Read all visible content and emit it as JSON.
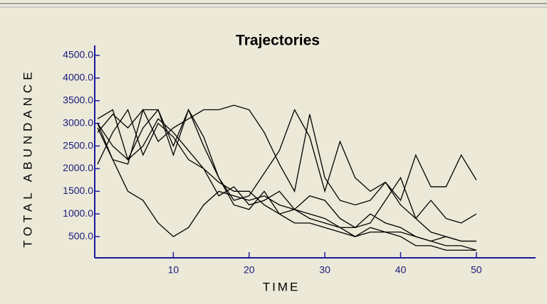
{
  "chart_data": {
    "type": "line",
    "title": "Trajectories",
    "x_label": "TIME",
    "y_label": "TOTAL ABUNDANCE",
    "x": [
      0,
      2,
      4,
      6,
      8,
      10,
      12,
      14,
      16,
      18,
      20,
      22,
      24,
      26,
      28,
      30,
      32,
      34,
      36,
      38,
      40,
      42,
      44,
      46,
      48,
      50
    ],
    "series": [
      {
        "color": "#000000",
        "values": [
          3000,
          2200,
          1500,
          1300,
          800,
          500,
          700,
          1200,
          1500,
          1400,
          1300,
          1400,
          1200,
          1100,
          1000,
          900,
          700,
          500,
          600,
          600,
          500,
          300,
          300,
          200,
          200,
          200
        ]
      },
      {
        "color": "#000000",
        "values": [
          2800,
          3200,
          2900,
          3300,
          3300,
          2500,
          3300,
          2500,
          1800,
          1300,
          1400,
          1900,
          2400,
          3300,
          2700,
          1500,
          2600,
          1800,
          1500,
          1700,
          1300,
          2300,
          1600,
          1600,
          2300,
          1750
        ]
      },
      {
        "color": "#000000",
        "values": [
          2900,
          2200,
          2100,
          3300,
          2600,
          2900,
          3100,
          3300,
          3300,
          3400,
          3300,
          2800,
          2100,
          1500,
          3200,
          1800,
          1300,
          1200,
          1300,
          1700,
          1200,
          900,
          1300,
          900,
          800,
          1000
        ]
      },
      {
        "color": "#000000",
        "values": [
          3100,
          3300,
          2200,
          2900,
          3300,
          2300,
          3300,
          2700,
          1800,
          1200,
          1100,
          1500,
          1000,
          800,
          800,
          700,
          600,
          500,
          700,
          600,
          600,
          500,
          400,
          300,
          300,
          200
        ]
      },
      {
        "color": "#000000",
        "values": [
          2100,
          2800,
          3300,
          2300,
          3000,
          2700,
          2200,
          2000,
          1400,
          1600,
          1200,
          1300,
          1500,
          1100,
          1400,
          1300,
          900,
          700,
          1000,
          800,
          700,
          500,
          400,
          500,
          400,
          400
        ]
      },
      {
        "color": "#000000",
        "values": [
          3000,
          2500,
          2200,
          2500,
          3100,
          2800,
          2400,
          2000,
          1700,
          1500,
          1500,
          1200,
          1000,
          1100,
          900,
          800,
          700,
          700,
          800,
          1300,
          1800,
          900,
          600,
          500,
          400,
          400
        ]
      }
    ],
    "xlim": [
      0,
      55
    ],
    "xticks": [
      10,
      20,
      30,
      40,
      50
    ],
    "ylim": [
      0,
      4500
    ],
    "yticks": [
      {
        "value": 500,
        "label": "500.0"
      },
      {
        "value": 1000,
        "label": "1000.0"
      },
      {
        "value": 1500,
        "label": "1500.0"
      },
      {
        "value": 2000,
        "label": "2000.0"
      },
      {
        "value": 2500,
        "label": "2500.0"
      },
      {
        "value": 3000,
        "label": "3000.0"
      },
      {
        "value": 3500,
        "label": "3500.0"
      },
      {
        "value": 4000,
        "label": "4000.0"
      },
      {
        "value": 4500,
        "label": "4500.0"
      }
    ],
    "axis_color": "#1a1a9c"
  }
}
